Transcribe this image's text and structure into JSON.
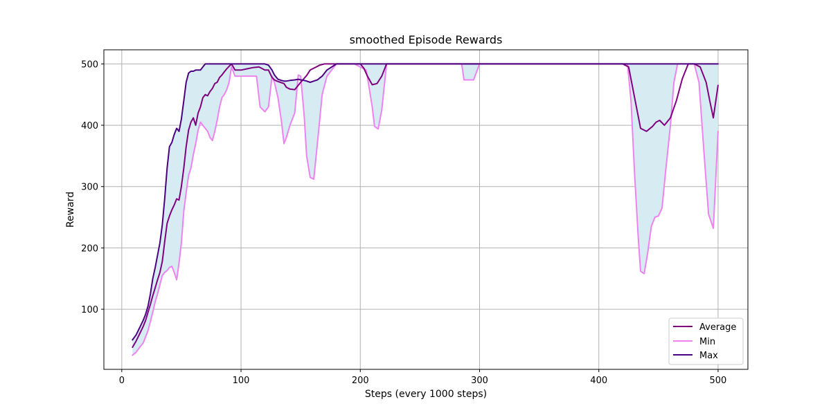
{
  "chart_data": {
    "type": "line",
    "title": "smoothed Episode Rewards",
    "xlabel": "Steps (every 1000 steps)",
    "ylabel": "Reward",
    "xlim": [
      -15,
      525
    ],
    "ylim": [
      2,
      523
    ],
    "xticks": [
      0,
      100,
      200,
      300,
      400,
      500
    ],
    "yticks": [
      100,
      200,
      300,
      400,
      500
    ],
    "grid": true,
    "legend_position": "lower-right",
    "fill_between": {
      "lower": "Min",
      "upper": "Max",
      "color": "#d6ebf2"
    },
    "series": [
      {
        "name": "Average",
        "color": "#800080",
        "x": [
          9,
          12,
          15,
          18,
          20,
          22,
          24,
          26,
          28,
          30,
          32,
          34,
          36,
          38,
          40,
          42,
          44,
          46,
          48,
          50,
          52,
          54,
          56,
          58,
          60,
          62,
          64,
          66,
          68,
          70,
          72,
          74,
          76,
          78,
          80,
          82,
          84,
          86,
          88,
          90,
          92,
          95,
          100,
          105,
          110,
          115,
          120,
          123,
          126,
          128,
          130,
          133,
          136,
          138,
          141,
          145,
          150,
          155,
          158,
          162,
          166,
          170,
          175,
          180,
          190,
          200,
          203,
          206,
          210,
          214,
          218,
          222,
          230,
          280,
          285,
          290,
          295,
          300,
          350,
          400,
          420,
          425,
          430,
          435,
          440,
          445,
          448,
          451,
          455,
          460,
          465,
          470,
          475,
          480,
          485,
          490,
          493,
          496,
          500
        ],
        "y": [
          38,
          48,
          60,
          72,
          82,
          95,
          108,
          122,
          135,
          148,
          160,
          178,
          210,
          240,
          252,
          262,
          270,
          280,
          278,
          300,
          330,
          365,
          392,
          405,
          412,
          400,
          420,
          430,
          445,
          450,
          448,
          455,
          460,
          468,
          470,
          478,
          482,
          487,
          492,
          496,
          500,
          490,
          490,
          492,
          494,
          495,
          490,
          490,
          478,
          474,
          472,
          470,
          468,
          462,
          459,
          458,
          470,
          481,
          490,
          494,
          498,
          500,
          500,
          500,
          500,
          500,
          493,
          480,
          466,
          468,
          480,
          500,
          500,
          500,
          500,
          500,
          500,
          500,
          500,
          500,
          500,
          495,
          445,
          395,
          390,
          398,
          405,
          408,
          400,
          412,
          440,
          476,
          500,
          500,
          495,
          470,
          440,
          412,
          465
        ]
      },
      {
        "name": "Min",
        "color": "#ee82ee",
        "x": [
          9,
          12,
          15,
          18,
          20,
          22,
          24,
          26,
          28,
          30,
          32,
          34,
          36,
          38,
          40,
          42,
          44,
          46,
          48,
          50,
          52,
          54,
          56,
          58,
          60,
          62,
          64,
          66,
          68,
          70,
          72,
          74,
          76,
          78,
          80,
          82,
          84,
          86,
          88,
          90,
          92,
          95,
          100,
          105,
          110,
          113,
          116,
          120,
          123,
          126,
          128,
          131,
          134,
          136,
          138,
          141,
          145,
          148,
          150,
          153,
          155,
          158,
          161,
          164,
          168,
          172,
          180,
          195,
          205,
          210,
          212,
          215,
          218,
          222,
          230,
          285,
          287,
          290,
          295,
          300,
          420,
          424,
          427,
          430,
          433,
          435,
          438,
          441,
          444,
          447,
          450,
          453,
          456,
          460,
          463,
          466,
          470,
          475,
          480,
          484,
          488,
          492,
          496,
          500
        ],
        "y": [
          25,
          30,
          38,
          45,
          55,
          65,
          80,
          95,
          112,
          125,
          140,
          155,
          160,
          163,
          168,
          170,
          160,
          148,
          175,
          208,
          260,
          290,
          318,
          330,
          352,
          370,
          392,
          405,
          400,
          395,
          390,
          380,
          375,
          390,
          408,
          430,
          445,
          450,
          458,
          470,
          495,
          480,
          480,
          480,
          480,
          480,
          430,
          422,
          430,
          480,
          470,
          445,
          405,
          370,
          380,
          400,
          420,
          482,
          480,
          415,
          350,
          315,
          312,
          370,
          450,
          480,
          500,
          500,
          490,
          430,
          398,
          394,
          425,
          500,
          500,
          500,
          474,
          474,
          474,
          500,
          500,
          500,
          440,
          320,
          218,
          162,
          158,
          192,
          235,
          250,
          252,
          265,
          325,
          400,
          470,
          500,
          500,
          500,
          500,
          470,
          360,
          255,
          232,
          390
        ]
      },
      {
        "name": "Max",
        "color": "#4b0082",
        "x": [
          9,
          12,
          15,
          18,
          20,
          22,
          24,
          26,
          28,
          30,
          32,
          34,
          36,
          38,
          40,
          42,
          44,
          46,
          48,
          50,
          52,
          54,
          56,
          58,
          60,
          62,
          64,
          66,
          68,
          70,
          72,
          100,
          105,
          110,
          115,
          120,
          123,
          126,
          128,
          131,
          134,
          136,
          138,
          141,
          145,
          148,
          150,
          153,
          155,
          158,
          161,
          164,
          168,
          172,
          180,
          200,
          500
        ],
        "y": [
          50,
          58,
          70,
          82,
          92,
          105,
          125,
          150,
          168,
          188,
          208,
          238,
          280,
          330,
          365,
          372,
          385,
          395,
          390,
          410,
          440,
          470,
          485,
          488,
          488,
          490,
          490,
          490,
          495,
          500,
          500,
          500,
          500,
          500,
          500,
          500,
          498,
          490,
          482,
          475,
          473,
          472,
          472,
          473,
          474,
          475,
          474,
          473,
          472,
          470,
          472,
          474,
          480,
          490,
          500,
          500,
          500
        ]
      }
    ]
  }
}
